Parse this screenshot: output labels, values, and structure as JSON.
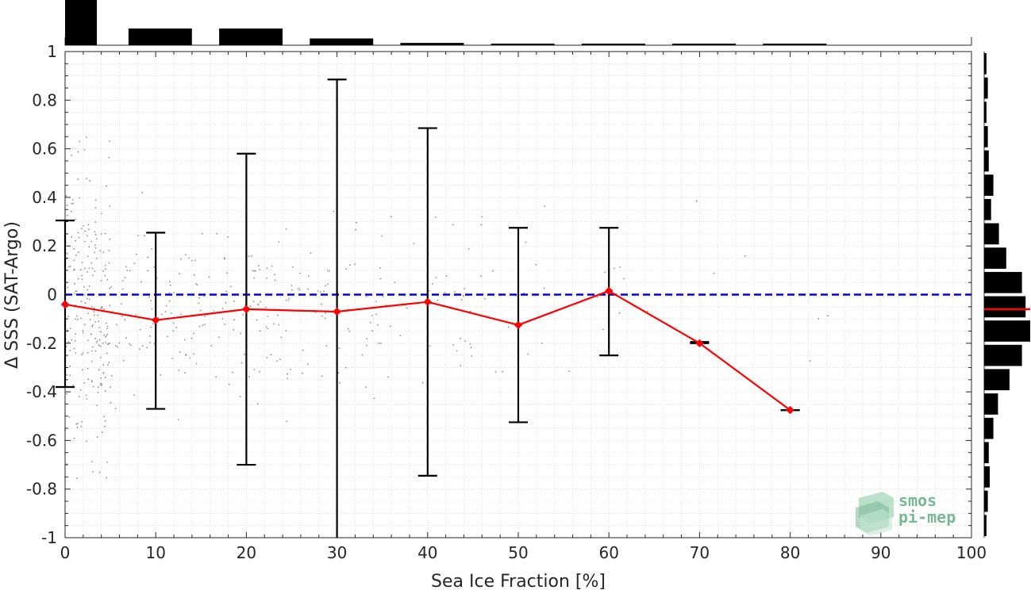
{
  "chart_data": {
    "type": "scatter",
    "xlabel": "Sea Ice Fraction [%]",
    "ylabel": "Δ SSS (SAT-Argo)",
    "xlim": [
      0,
      100
    ],
    "ylim": [
      -1,
      1
    ],
    "x_ticks": [
      0,
      10,
      20,
      30,
      40,
      50,
      60,
      70,
      80,
      90,
      100
    ],
    "y_ticks": [
      -1,
      -0.8,
      -0.6,
      -0.4,
      -0.2,
      0,
      0.2,
      0.4,
      0.6,
      0.8,
      1
    ],
    "grid": true,
    "zero_line_color": "#0000dd",
    "mean_line_color": "#ff0000",
    "mean_series": {
      "x": [
        0,
        10,
        20,
        30,
        40,
        50,
        60,
        70,
        80
      ],
      "y": [
        -0.04,
        -0.105,
        -0.06,
        -0.07,
        -0.03,
        -0.125,
        0.015,
        -0.2,
        -0.475
      ]
    },
    "error_bars": {
      "x": [
        0,
        10,
        20,
        30,
        40,
        50,
        60,
        70,
        80
      ],
      "lower": [
        -0.38,
        -0.47,
        -0.7,
        -1.0,
        -0.745,
        -0.525,
        -0.25,
        -0.2,
        -0.475
      ],
      "upper": [
        0.305,
        0.255,
        0.58,
        0.885,
        0.685,
        0.275,
        0.275,
        -0.195,
        -0.475
      ]
    },
    "top_histogram": {
      "bin_centers": [
        1.75,
        10.5,
        20.5,
        30.5,
        40.5,
        50.5,
        60.5,
        70.5,
        80.5
      ],
      "relative_heights": [
        1.0,
        0.37,
        0.37,
        0.15,
        0.05,
        0.03,
        0.02,
        0.02,
        0.02
      ]
    },
    "right_histogram": {
      "bin_centers": [
        0.95,
        0.85,
        0.75,
        0.65,
        0.55,
        0.45,
        0.35,
        0.25,
        0.15,
        0.05,
        -0.05,
        -0.15,
        -0.25,
        -0.35,
        -0.45,
        -0.55,
        -0.65,
        -0.75,
        -0.85,
        -0.95
      ],
      "relative_counts": [
        0.05,
        0.08,
        0.05,
        0.08,
        0.1,
        0.2,
        0.15,
        0.32,
        0.48,
        0.82,
        0.9,
        1.0,
        0.82,
        0.55,
        0.3,
        0.2,
        0.1,
        0.12,
        0.08,
        0.05
      ],
      "median": -0.06
    }
  },
  "watermark": {
    "line1": "smos",
    "line2": "pi-mep",
    "color": "#79b896"
  }
}
